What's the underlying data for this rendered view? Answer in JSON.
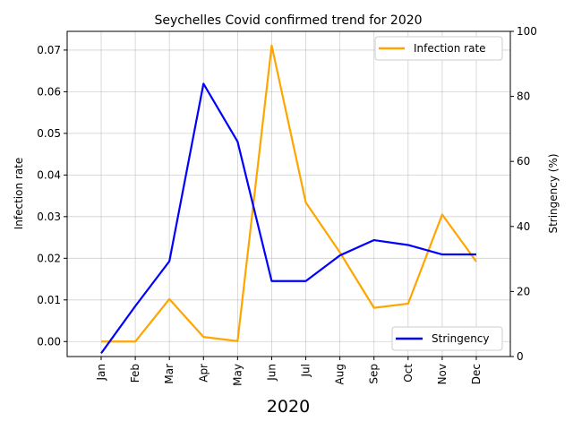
{
  "chart_data": {
    "type": "line",
    "title": "Seychelles Covid confirmed trend for 2020",
    "xlabel": "2020",
    "categories": [
      "Jan",
      "Feb",
      "Mar",
      "Apr",
      "May",
      "Jun",
      "Jul",
      "Aug",
      "Sep",
      "Oct",
      "Nov",
      "Dec"
    ],
    "grid": true,
    "left_axis": {
      "label": "Infection rate",
      "ylim": [
        -0.0036,
        0.0745
      ],
      "ticks": [
        "0.00",
        "0.01",
        "0.02",
        "0.03",
        "0.04",
        "0.05",
        "0.06",
        "0.07"
      ],
      "tick_values": [
        0,
        0.01,
        0.02,
        0.03,
        0.04,
        0.05,
        0.06,
        0.07
      ]
    },
    "right_axis": {
      "label": "Stringency (%)",
      "ylim": [
        0,
        100
      ],
      "ticks": [
        "0",
        "20",
        "40",
        "60",
        "80",
        "100"
      ],
      "tick_values": [
        0,
        20,
        40,
        60,
        80,
        100
      ]
    },
    "series": [
      {
        "name": "Infection rate",
        "axis": "left",
        "color": "#ffa500",
        "legend_position": "upper-right",
        "values": [
          0.0,
          0.0,
          0.0102,
          0.0011,
          0.0001,
          0.0711,
          0.0334,
          0.0214,
          0.0081,
          0.0091,
          0.0305,
          0.0192
        ]
      },
      {
        "name": "Stringency",
        "axis": "right",
        "color": "#0000ff",
        "legend_position": "lower-right",
        "values": [
          1.0,
          15.5,
          29.3,
          83.9,
          66.1,
          23.2,
          23.2,
          31.1,
          35.8,
          34.3,
          31.4,
          31.4
        ]
      }
    ]
  }
}
